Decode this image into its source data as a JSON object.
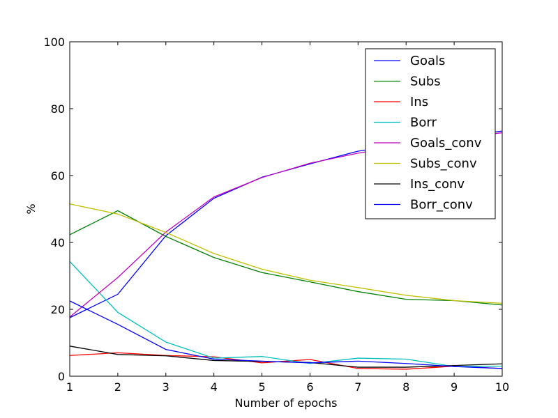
{
  "chart_data": {
    "type": "line",
    "title": "",
    "xlabel": "Number of epochs",
    "ylabel": "%",
    "xlim": [
      1,
      10
    ],
    "ylim": [
      0,
      100
    ],
    "x": [
      1,
      2,
      3,
      4,
      5,
      6,
      7,
      8,
      9,
      10
    ],
    "xticks": [
      "1",
      "2",
      "3",
      "4",
      "5",
      "6",
      "7",
      "8",
      "9",
      "10"
    ],
    "yticks": [
      "0",
      "20",
      "40",
      "60",
      "80",
      "100"
    ],
    "grid": false,
    "legend_position": "top-right",
    "series": [
      {
        "name": "Goals",
        "color": "#0000ff",
        "values": [
          17.5,
          24.5,
          42,
          53.2,
          59.5,
          63.5,
          67.3,
          69.5,
          71.5,
          73.3
        ]
      },
      {
        "name": "Subs",
        "color": "#008000",
        "values": [
          42.3,
          49.5,
          41.8,
          35.5,
          31,
          28.2,
          25.3,
          23,
          22.6,
          21.3
        ]
      },
      {
        "name": "Ins",
        "color": "#ff0000",
        "values": [
          6.2,
          7,
          6.2,
          5.8,
          4,
          5,
          2.3,
          2.1,
          3,
          2.3
        ]
      },
      {
        "name": "Borr",
        "color": "#00bfbf",
        "values": [
          34.3,
          19.1,
          10.2,
          5.4,
          5.9,
          3.8,
          5.4,
          5.1,
          2.9,
          3
        ]
      },
      {
        "name": "Goals_conv",
        "color": "#bf00bf",
        "values": [
          17.7,
          29.5,
          43.1,
          53.6,
          59.4,
          63.7,
          66.7,
          69,
          71.2,
          72.8
        ]
      },
      {
        "name": "Subs_conv",
        "color": "#bfbf00",
        "values": [
          51.5,
          48.5,
          43,
          36.7,
          32,
          28.7,
          26.5,
          24.2,
          22.6,
          21.8
        ]
      },
      {
        "name": "Ins_conv",
        "color": "#000000",
        "values": [
          9,
          6.5,
          6.1,
          4.7,
          4.4,
          4.1,
          2.7,
          2.7,
          3.2,
          3.7
        ]
      },
      {
        "name": "Borr_conv",
        "color": "#0000ff",
        "values": [
          22.5,
          15.5,
          8,
          5.1,
          4.5,
          4,
          4.5,
          3.8,
          2.9,
          2.3
        ]
      }
    ]
  }
}
